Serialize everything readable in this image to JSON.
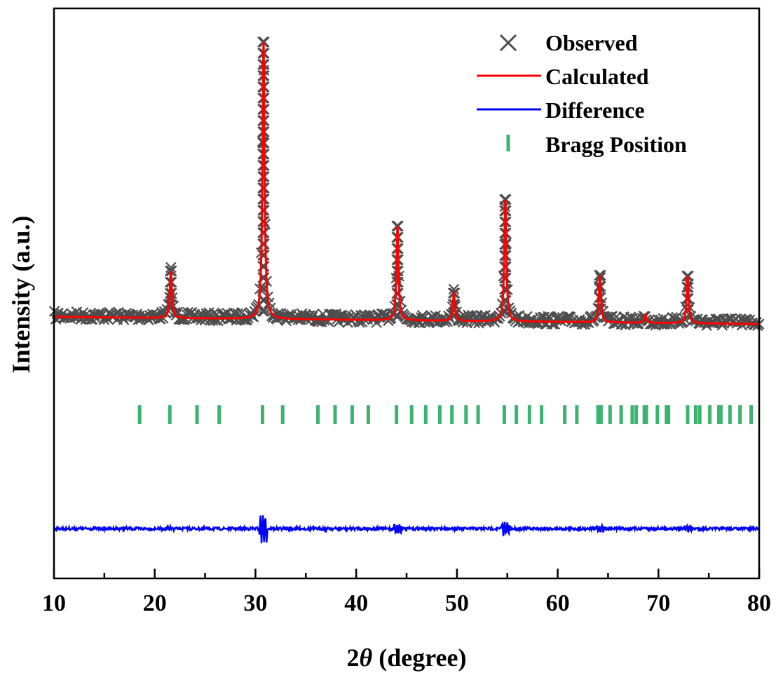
{
  "chart_data": {
    "type": "line",
    "xlabel_prefix": "2",
    "xlabel_symbol": "θ",
    "xlabel_suffix": " (degree)",
    "ylabel": "Intensity (a.u.)",
    "xlim": [
      10,
      80
    ],
    "x_ticks": [
      10,
      20,
      30,
      40,
      50,
      60,
      70,
      80
    ],
    "y_ticks": [],
    "grid": false,
    "legend_position": "top-right",
    "colors": {
      "observed": "#4d4d4d",
      "calculated": "#ff0000",
      "difference": "#0000ff",
      "bragg": "#3cb371"
    },
    "peaks": [
      {
        "x": 21.6,
        "height": 0.17
      },
      {
        "x": 30.8,
        "height": 1.0
      },
      {
        "x": 44.1,
        "height": 0.34
      },
      {
        "x": 49.7,
        "height": 0.1
      },
      {
        "x": 54.8,
        "height": 0.44
      },
      {
        "x": 64.2,
        "height": 0.17
      },
      {
        "x": 68.7,
        "height": 0.03
      },
      {
        "x": 72.9,
        "height": 0.17
      }
    ],
    "bragg_positions": [
      18.5,
      21.5,
      24.2,
      26.4,
      30.7,
      32.7,
      36.2,
      37.9,
      39.6,
      41.2,
      44.0,
      45.5,
      46.9,
      48.3,
      49.5,
      50.9,
      52.1,
      54.7,
      55.9,
      57.2,
      58.4,
      60.7,
      61.9,
      64.0,
      64.3,
      65.2,
      66.3,
      67.4,
      67.8,
      68.6,
      68.8,
      69.9,
      70.8,
      71.0,
      72.9,
      73.7,
      74.1,
      75.1,
      76.0,
      76.2,
      77.1,
      78.1,
      79.2
    ],
    "series": [
      {
        "name": "Observed",
        "marker": "x"
      },
      {
        "name": "Calculated",
        "marker": "line"
      },
      {
        "name": "Difference",
        "marker": "line"
      },
      {
        "name": "Bragg Position",
        "marker": "tick"
      }
    ]
  }
}
